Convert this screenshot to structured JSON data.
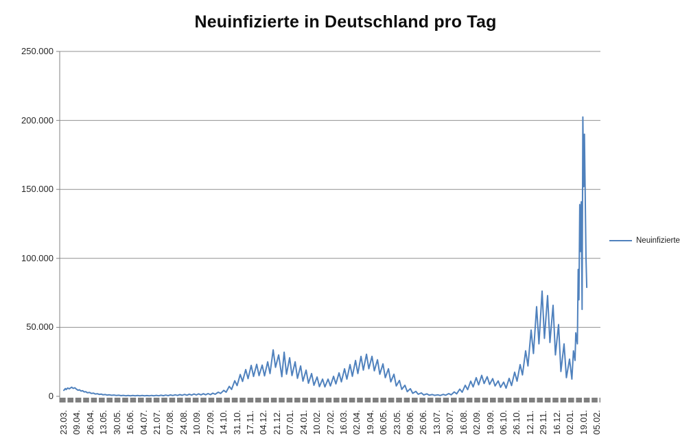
{
  "chart_data": {
    "type": "line",
    "title": "Neuinfizierte in Deutschland pro Tag",
    "legend_position": "right",
    "grid": true,
    "colors": {
      "gridline": "#909090",
      "axis": "#808080",
      "tick_strip": "#7F7F7F",
      "label_text": "#262626"
    },
    "y_axis": {
      "min": 0,
      "max": 250000,
      "step": 50000,
      "tick_labels": [
        "250.000",
        "200.000",
        "150.000",
        "100.000",
        "50.000",
        "0"
      ]
    },
    "x_axis": {
      "max_index": 680,
      "label_every": 17,
      "labels": [
        "23.03.",
        "09.04.",
        "26.04.",
        "13.05.",
        "30.05.",
        "16.06.",
        "04.07.",
        "21.07.",
        "07.08.",
        "24.08.",
        "10.09.",
        "27.09.",
        "14.10.",
        "31.10.",
        "17.11.",
        "04.12.",
        "21.12.",
        "07.01.",
        "24.01.",
        "10.02.",
        "27.02.",
        "16.03.",
        "02.04.",
        "19.04.",
        "06.05.",
        "23.05.",
        "09.06.",
        "26.06.",
        "13.07.",
        "30.07.",
        "16.08.",
        "02.09.",
        "19.09.",
        "06.10.",
        "26.10.",
        "12.11.",
        "29.11.",
        "16.12.",
        "02.01.",
        "19.01.",
        "05.02."
      ]
    },
    "series": [
      {
        "name": "Neuinfizierte",
        "color": "#4F81BD",
        "points": [
          [
            0,
            4300
          ],
          [
            2,
            5600
          ],
          [
            3,
            4900
          ],
          [
            5,
            6000
          ],
          [
            7,
            5400
          ],
          [
            10,
            6600
          ],
          [
            12,
            5700
          ],
          [
            14,
            6200
          ],
          [
            16,
            5200
          ],
          [
            18,
            4400
          ],
          [
            20,
            4700
          ],
          [
            22,
            3800
          ],
          [
            24,
            4100
          ],
          [
            26,
            3200
          ],
          [
            28,
            3400
          ],
          [
            30,
            2600
          ],
          [
            33,
            2800
          ],
          [
            35,
            2100
          ],
          [
            38,
            2300
          ],
          [
            40,
            1700
          ],
          [
            43,
            1900
          ],
          [
            45,
            1400
          ],
          [
            48,
            1600
          ],
          [
            50,
            1100
          ],
          [
            53,
            1300
          ],
          [
            55,
            900
          ],
          [
            58,
            1100
          ],
          [
            61,
            750
          ],
          [
            64,
            950
          ],
          [
            67,
            600
          ],
          [
            70,
            800
          ],
          [
            73,
            500
          ],
          [
            76,
            700
          ],
          [
            79,
            420
          ],
          [
            82,
            650
          ],
          [
            85,
            400
          ],
          [
            88,
            620
          ],
          [
            91,
            380
          ],
          [
            94,
            600
          ],
          [
            97,
            360
          ],
          [
            100,
            580
          ],
          [
            103,
            340
          ],
          [
            106,
            560
          ],
          [
            109,
            330
          ],
          [
            112,
            640
          ],
          [
            115,
            380
          ],
          [
            118,
            700
          ],
          [
            121,
            420
          ],
          [
            124,
            780
          ],
          [
            127,
            460
          ],
          [
            130,
            870
          ],
          [
            133,
            520
          ],
          [
            136,
            980
          ],
          [
            139,
            580
          ],
          [
            142,
            1100
          ],
          [
            145,
            650
          ],
          [
            148,
            1250
          ],
          [
            151,
            730
          ],
          [
            154,
            1400
          ],
          [
            157,
            820
          ],
          [
            160,
            1550
          ],
          [
            163,
            900
          ],
          [
            166,
            1700
          ],
          [
            169,
            980
          ],
          [
            172,
            1800
          ],
          [
            175,
            1050
          ],
          [
            178,
            1900
          ],
          [
            181,
            1100
          ],
          [
            184,
            2000
          ],
          [
            187,
            1200
          ],
          [
            190,
            2300
          ],
          [
            193,
            1500
          ],
          [
            197,
            3000
          ],
          [
            200,
            2100
          ],
          [
            204,
            4300
          ],
          [
            207,
            3000
          ],
          [
            211,
            7200
          ],
          [
            214,
            5000
          ],
          [
            218,
            11300
          ],
          [
            221,
            7800
          ],
          [
            225,
            15800
          ],
          [
            228,
            10800
          ],
          [
            232,
            19400
          ],
          [
            235,
            12800
          ],
          [
            239,
            22400
          ],
          [
            242,
            14400
          ],
          [
            246,
            23200
          ],
          [
            249,
            15000
          ],
          [
            253,
            22600
          ],
          [
            256,
            14800
          ],
          [
            260,
            25000
          ],
          [
            263,
            16500
          ],
          [
            267,
            33700
          ],
          [
            270,
            21000
          ],
          [
            274,
            30000
          ],
          [
            278,
            14200
          ],
          [
            281,
            32000
          ],
          [
            284,
            16000
          ],
          [
            288,
            28000
          ],
          [
            291,
            15000
          ],
          [
            295,
            25000
          ],
          [
            298,
            13000
          ],
          [
            302,
            22000
          ],
          [
            305,
            11000
          ],
          [
            309,
            19000
          ],
          [
            312,
            9500
          ],
          [
            316,
            16500
          ],
          [
            319,
            8000
          ],
          [
            323,
            14000
          ],
          [
            326,
            7000
          ],
          [
            330,
            12500
          ],
          [
            333,
            6800
          ],
          [
            337,
            12500
          ],
          [
            340,
            7500
          ],
          [
            344,
            14500
          ],
          [
            347,
            9000
          ],
          [
            351,
            17000
          ],
          [
            354,
            10500
          ],
          [
            358,
            20000
          ],
          [
            361,
            12500
          ],
          [
            365,
            23000
          ],
          [
            368,
            14500
          ],
          [
            372,
            26000
          ],
          [
            375,
            16500
          ],
          [
            379,
            29000
          ],
          [
            382,
            19000
          ],
          [
            386,
            30500
          ],
          [
            389,
            20000
          ],
          [
            393,
            29000
          ],
          [
            396,
            18500
          ],
          [
            400,
            26500
          ],
          [
            403,
            16000
          ],
          [
            407,
            23500
          ],
          [
            410,
            13500
          ],
          [
            414,
            20000
          ],
          [
            417,
            10500
          ],
          [
            421,
            16000
          ],
          [
            424,
            7500
          ],
          [
            428,
            11500
          ],
          [
            431,
            5000
          ],
          [
            435,
            8000
          ],
          [
            438,
            3400
          ],
          [
            442,
            5500
          ],
          [
            445,
            2200
          ],
          [
            449,
            3600
          ],
          [
            452,
            1500
          ],
          [
            456,
            2500
          ],
          [
            459,
            1000
          ],
          [
            463,
            1800
          ],
          [
            466,
            800
          ],
          [
            470,
            1300
          ],
          [
            473,
            700
          ],
          [
            477,
            1100
          ],
          [
            480,
            600
          ],
          [
            484,
            1400
          ],
          [
            487,
            800
          ],
          [
            491,
            2000
          ],
          [
            494,
            1100
          ],
          [
            498,
            3200
          ],
          [
            501,
            1800
          ],
          [
            505,
            5200
          ],
          [
            508,
            3000
          ],
          [
            512,
            8000
          ],
          [
            515,
            4800
          ],
          [
            519,
            11000
          ],
          [
            522,
            6800
          ],
          [
            526,
            13500
          ],
          [
            529,
            8300
          ],
          [
            533,
            15200
          ],
          [
            536,
            9300
          ],
          [
            540,
            14200
          ],
          [
            543,
            8600
          ],
          [
            547,
            12800
          ],
          [
            550,
            7500
          ],
          [
            554,
            11200
          ],
          [
            557,
            6500
          ],
          [
            561,
            10300
          ],
          [
            564,
            5900
          ],
          [
            568,
            13000
          ],
          [
            571,
            7800
          ],
          [
            575,
            17500
          ],
          [
            578,
            11000
          ],
          [
            582,
            23000
          ],
          [
            585,
            15500
          ],
          [
            589,
            33000
          ],
          [
            592,
            22000
          ],
          [
            596,
            48000
          ],
          [
            599,
            31000
          ],
          [
            603,
            65000
          ],
          [
            606,
            38000
          ],
          [
            610,
            76300
          ],
          [
            613,
            42000
          ],
          [
            617,
            73000
          ],
          [
            620,
            39000
          ],
          [
            624,
            66000
          ],
          [
            627,
            30000
          ],
          [
            631,
            52000
          ],
          [
            634,
            18000
          ],
          [
            638,
            38000
          ],
          [
            641,
            13500
          ],
          [
            645,
            27000
          ],
          [
            648,
            12500
          ],
          [
            650,
            33000
          ],
          [
            652,
            26000
          ],
          [
            653,
            46000
          ],
          [
            655,
            38000
          ],
          [
            656,
            92000
          ],
          [
            657,
            70000
          ],
          [
            658,
            139000
          ],
          [
            659,
            105000
          ],
          [
            660,
            141000
          ],
          [
            661,
            63000
          ],
          [
            662,
            202500
          ],
          [
            663,
            152000
          ],
          [
            664,
            190000
          ],
          [
            666,
            100000
          ],
          [
            667,
            79000
          ]
        ]
      }
    ]
  }
}
